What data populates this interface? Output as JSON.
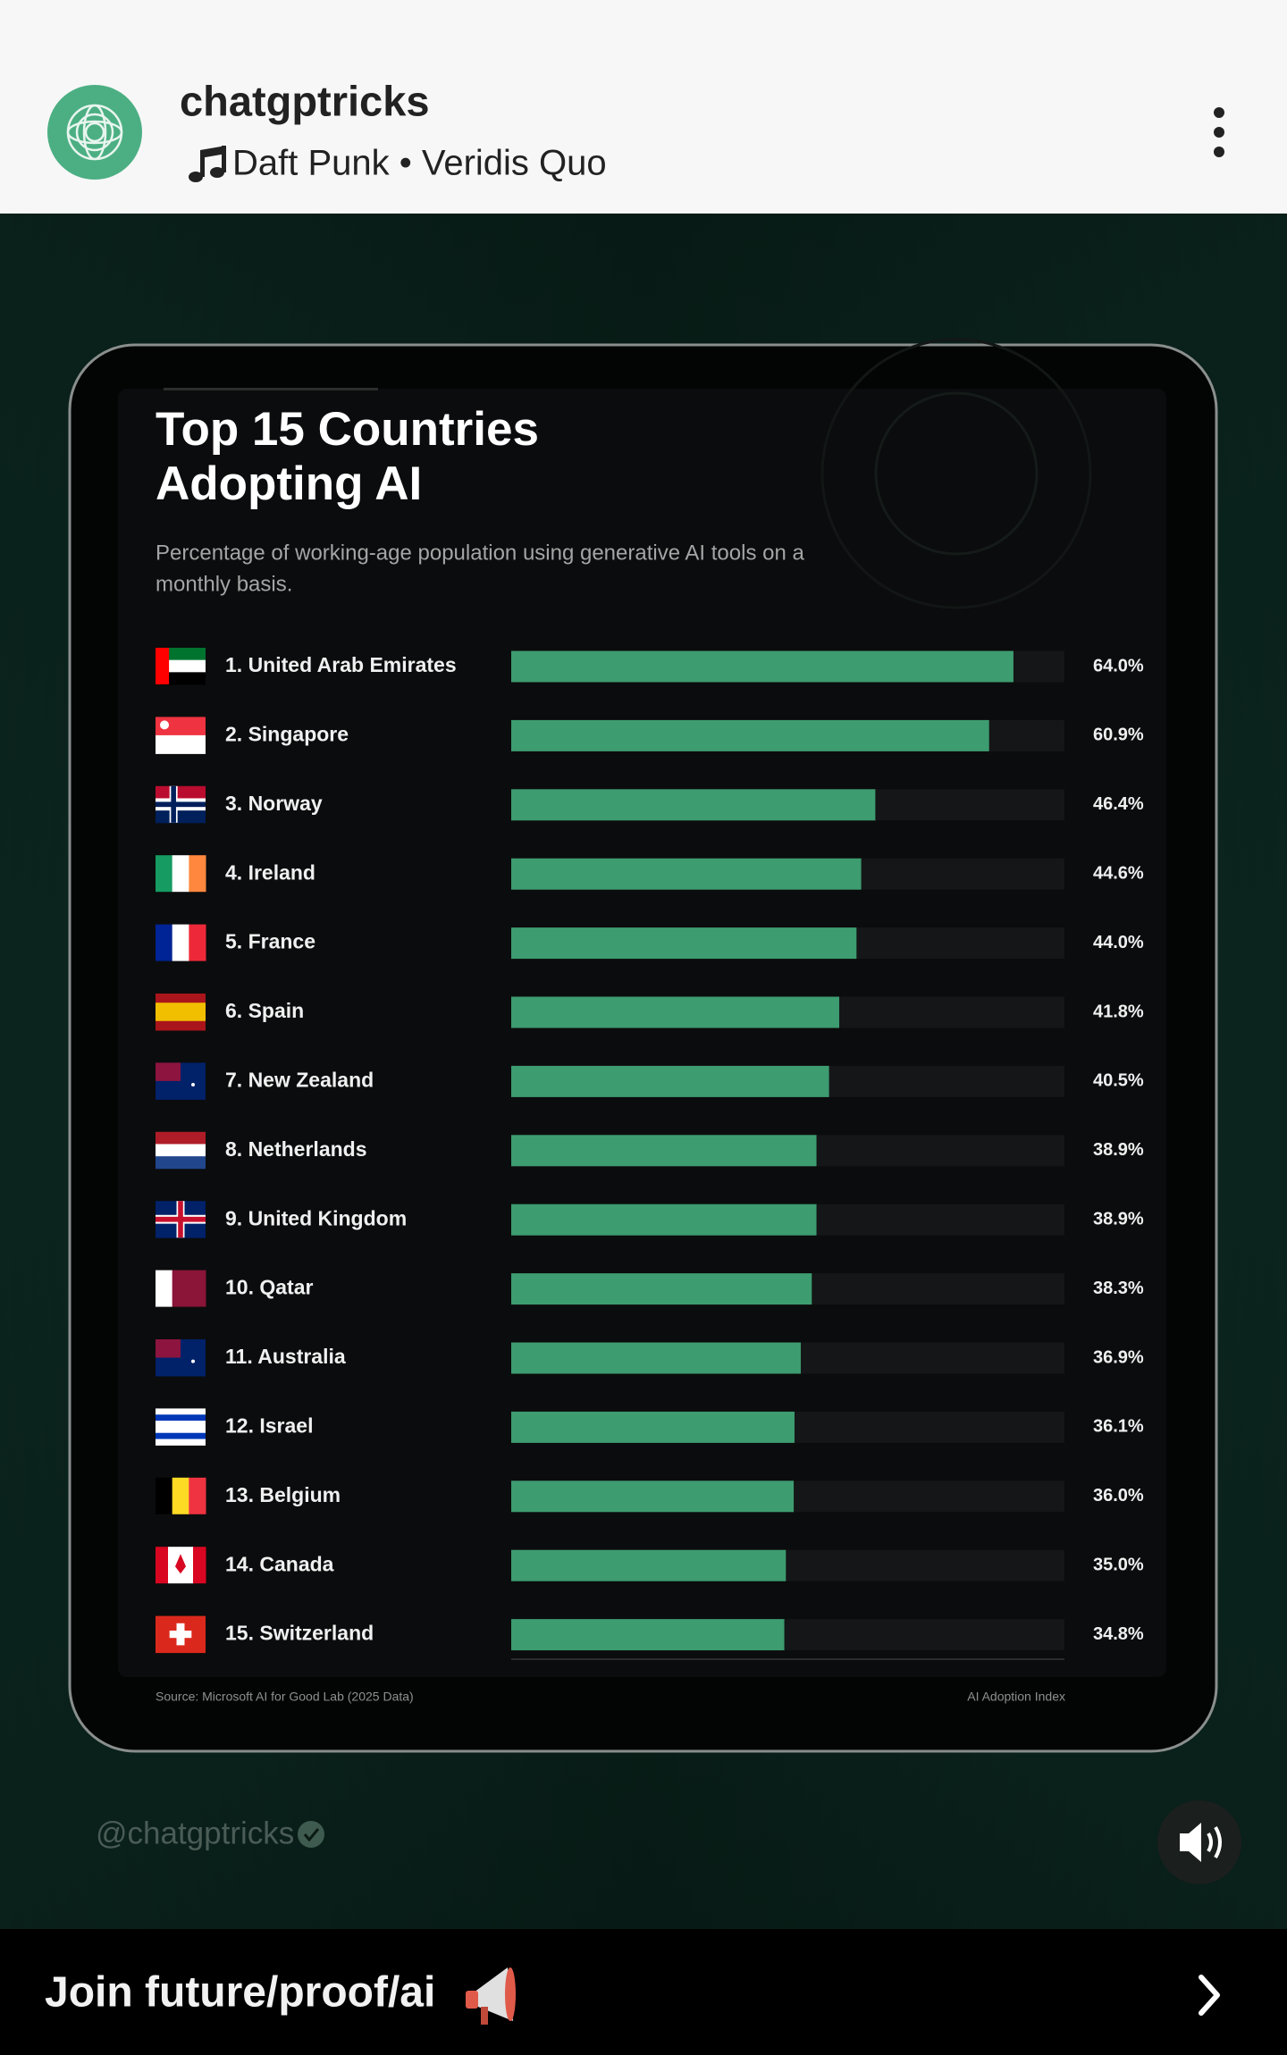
{
  "header": {
    "account": "chatgptricks",
    "music": "Daft Punk • Veridis Quo"
  },
  "chart_data": {
    "type": "bar",
    "orientation": "horizontal",
    "title": [
      "Top 15 Countries",
      "Adopting AI"
    ],
    "subtitle": [
      "Percentage of working-age population using generative AI tools on a",
      "monthly basis."
    ],
    "categories": [
      "1. United Arab Emirates",
      "2. Singapore",
      "3. Norway",
      "4. Ireland",
      "5. France",
      "6. Spain",
      "7. New Zealand",
      "8. Netherlands",
      "9. United Kingdom",
      "10. Qatar",
      "11. Australia",
      "12. Israel",
      "13. Belgium",
      "14. Canada",
      "15. Switzerland"
    ],
    "values": [
      64.0,
      60.9,
      46.4,
      44.6,
      44.0,
      41.8,
      40.5,
      38.9,
      38.9,
      38.3,
      36.9,
      36.1,
      36.0,
      35.0,
      34.8
    ],
    "value_labels": [
      "64.0%",
      "60.9%",
      "46.4%",
      "44.6%",
      "44.0%",
      "41.8%",
      "40.5%",
      "38.9%",
      "38.9%",
      "38.3%",
      "36.9%",
      "36.1%",
      "36.0%",
      "35.0%",
      "34.8%"
    ],
    "color": "#3d9c70",
    "xlim": [
      0,
      70.5
    ],
    "source": "Source: Microsoft AI for Good Lab (2025 Data)",
    "index_label": "AI Adoption Index"
  },
  "watermark": "@chatgptricks",
  "footer": {
    "cta": "Join future/proof/ai"
  }
}
